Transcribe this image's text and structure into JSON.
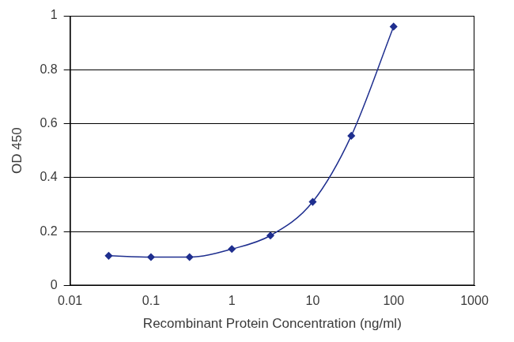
{
  "chart_data": {
    "type": "line",
    "x_label": "Recombinant Protein Concentration (ng/ml)",
    "y_label": "OD 450",
    "x": [
      0.03,
      0.1,
      0.3,
      1,
      3,
      10,
      30,
      100
    ],
    "values": [
      0.11,
      0.105,
      0.105,
      0.135,
      0.185,
      0.31,
      0.555,
      0.96
    ],
    "color": "#1f2f8f",
    "marker": "diamond",
    "line_style": "solid",
    "log": "x",
    "xlim": [
      0.01,
      1000
    ],
    "xticks": [
      0.01,
      0.1,
      1,
      10,
      100,
      1000
    ],
    "ylim": [
      0,
      1
    ],
    "yticks": [
      0,
      0.2,
      0.4,
      0.6,
      0.8,
      1
    ],
    "grid": true
  }
}
